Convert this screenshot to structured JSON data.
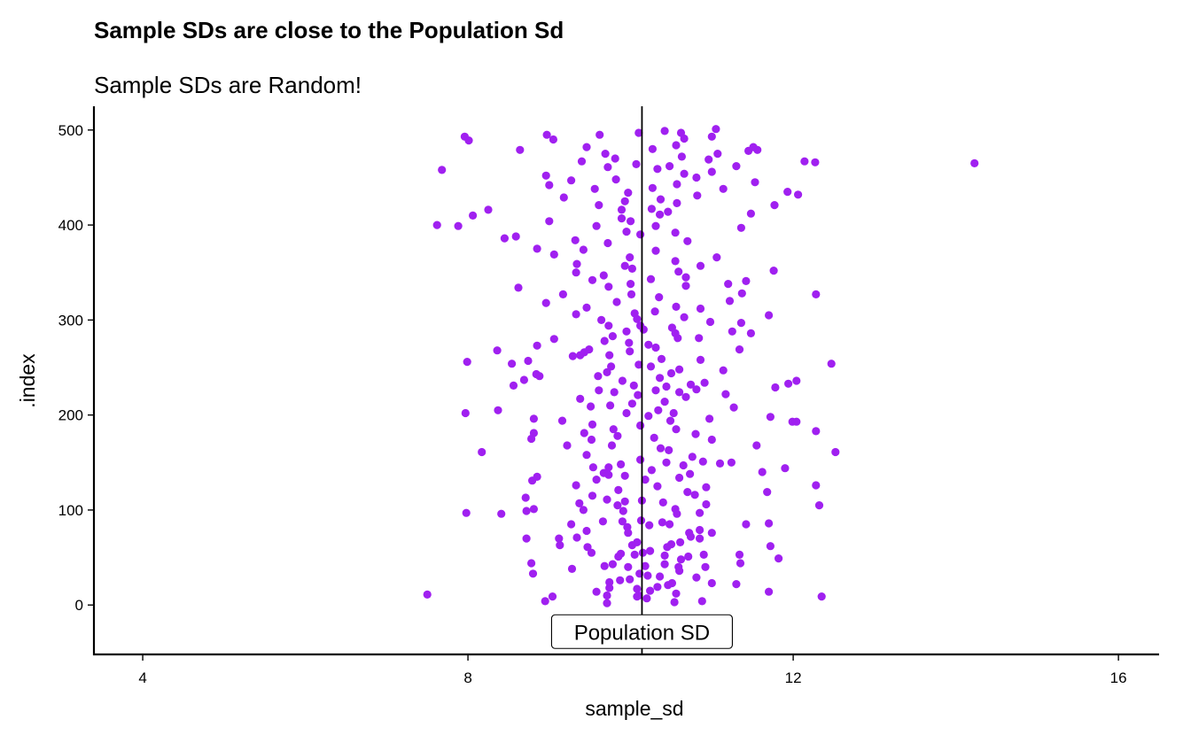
{
  "chart_data": {
    "type": "scatter",
    "title": "Sample SDs are close to the Population Sd",
    "subtitle": "Sample SDs are Random!",
    "xlabel": "sample_sd",
    "ylabel": ".index",
    "xlim": [
      3.4,
      16.5
    ],
    "ylim": [
      -52,
      525
    ],
    "x_ticks": [
      4,
      8,
      12,
      16
    ],
    "y_ticks": [
      0,
      100,
      200,
      300,
      400,
      500
    ],
    "grid": false,
    "legend": "none",
    "point_color": "#A020F0",
    "line_color": "#000000",
    "reference_line": {
      "x": 10.14,
      "label": "Population SD"
    },
    "points": [
      [
        7.5,
        11
      ],
      [
        9.71,
        2
      ],
      [
        9.71,
        10
      ],
      [
        10.08,
        9
      ],
      [
        10.54,
        3
      ],
      [
        10.1,
        10
      ],
      [
        10.88,
        4
      ],
      [
        9.04,
        9
      ],
      [
        10.33,
        19
      ],
      [
        12.35,
        9
      ],
      [
        10.56,
        12
      ],
      [
        8.95,
        4
      ],
      [
        10.2,
        7
      ],
      [
        9.58,
        14
      ],
      [
        10.24,
        15
      ],
      [
        10.08,
        17
      ],
      [
        9.74,
        18
      ],
      [
        10.46,
        21
      ],
      [
        11.0,
        23
      ],
      [
        10.51,
        23
      ],
      [
        9.74,
        24
      ],
      [
        11.7,
        14
      ],
      [
        11.3,
        22
      ],
      [
        9.87,
        26
      ],
      [
        9.99,
        27
      ],
      [
        10.81,
        29
      ],
      [
        10.36,
        30
      ],
      [
        9.28,
        38
      ],
      [
        8.8,
        33
      ],
      [
        10.21,
        31
      ],
      [
        10.11,
        33
      ],
      [
        9.97,
        40
      ],
      [
        10.6,
        36
      ],
      [
        10.18,
        41
      ],
      [
        8.78,
        44
      ],
      [
        9.68,
        41
      ],
      [
        10.42,
        43
      ],
      [
        10.92,
        40
      ],
      [
        9.78,
        43
      ],
      [
        11.35,
        44
      ],
      [
        10.59,
        40
      ],
      [
        10.62,
        48
      ],
      [
        11.82,
        49
      ],
      [
        9.85,
        51
      ],
      [
        10.05,
        53
      ],
      [
        10.42,
        52
      ],
      [
        10.71,
        51
      ],
      [
        10.15,
        55
      ],
      [
        9.88,
        54
      ],
      [
        9.52,
        55
      ],
      [
        10.9,
        53
      ],
      [
        11.34,
        53
      ],
      [
        10.24,
        57
      ],
      [
        9.47,
        61
      ],
      [
        10.45,
        61
      ],
      [
        9.13,
        63
      ],
      [
        11.72,
        62
      ],
      [
        10.5,
        64
      ],
      [
        10.02,
        63
      ],
      [
        10.08,
        66
      ],
      [
        10.61,
        66
      ],
      [
        9.12,
        70
      ],
      [
        10.85,
        70
      ],
      [
        10.74,
        72
      ],
      [
        8.72,
        70
      ],
      [
        9.34,
        71
      ],
      [
        9.97,
        76
      ],
      [
        10.72,
        76
      ],
      [
        9.46,
        78
      ],
      [
        11.0,
        76
      ],
      [
        10.85,
        79
      ],
      [
        9.96,
        82
      ],
      [
        9.27,
        85
      ],
      [
        11.42,
        85
      ],
      [
        10.23,
        84
      ],
      [
        10.48,
        85
      ],
      [
        10.39,
        87
      ],
      [
        9.66,
        88
      ],
      [
        9.9,
        88
      ],
      [
        11.7,
        86
      ],
      [
        10.13,
        89
      ],
      [
        7.98,
        97
      ],
      [
        8.41,
        96
      ],
      [
        10.57,
        96
      ],
      [
        10.85,
        97
      ],
      [
        8.72,
        99
      ],
      [
        9.42,
        100
      ],
      [
        9.91,
        99
      ],
      [
        10.55,
        101
      ],
      [
        9.84,
        105
      ],
      [
        8.81,
        101
      ],
      [
        10.93,
        106
      ],
      [
        9.37,
        107
      ],
      [
        10.4,
        108
      ],
      [
        12.32,
        105
      ],
      [
        9.71,
        111
      ],
      [
        9.93,
        109
      ],
      [
        10.14,
        110
      ],
      [
        8.71,
        113
      ],
      [
        9.53,
        115
      ],
      [
        10.79,
        116
      ],
      [
        11.68,
        119
      ],
      [
        10.7,
        119
      ],
      [
        9.85,
        121
      ],
      [
        12.28,
        126
      ],
      [
        10.33,
        125
      ],
      [
        9.33,
        126
      ],
      [
        10.93,
        124
      ],
      [
        8.79,
        131
      ],
      [
        10.18,
        132
      ],
      [
        9.58,
        132
      ],
      [
        10.6,
        134
      ],
      [
        9.93,
        136
      ],
      [
        9.73,
        137
      ],
      [
        10.73,
        138
      ],
      [
        9.67,
        139
      ],
      [
        8.85,
        135
      ],
      [
        11.9,
        144
      ],
      [
        10.26,
        142
      ],
      [
        9.73,
        145
      ],
      [
        11.62,
        140
      ],
      [
        9.54,
        145
      ],
      [
        10.65,
        147
      ],
      [
        9.88,
        148
      ],
      [
        11.1,
        149
      ],
      [
        11.24,
        150
      ],
      [
        10.44,
        150
      ],
      [
        10.12,
        153
      ],
      [
        10.89,
        151
      ],
      [
        8.17,
        161
      ],
      [
        12.52,
        161
      ],
      [
        10.76,
        156
      ],
      [
        9.46,
        158
      ],
      [
        10.47,
        163
      ],
      [
        10.37,
        165
      ],
      [
        9.22,
        168
      ],
      [
        9.77,
        168
      ],
      [
        11.55,
        168
      ],
      [
        8.78,
        175
      ],
      [
        9.52,
        174
      ],
      [
        11.0,
        174
      ],
      [
        10.29,
        176
      ],
      [
        9.84,
        178
      ],
      [
        8.81,
        181
      ],
      [
        9.43,
        181
      ],
      [
        10.8,
        180
      ],
      [
        9.79,
        185
      ],
      [
        12.28,
        183
      ],
      [
        10.56,
        185
      ],
      [
        10.12,
        189
      ],
      [
        9.53,
        190
      ],
      [
        9.16,
        194
      ],
      [
        11.99,
        193
      ],
      [
        10.49,
        194
      ],
      [
        8.81,
        196
      ],
      [
        10.97,
        196
      ],
      [
        12.04,
        193
      ],
      [
        10.22,
        199
      ],
      [
        9.95,
        202
      ],
      [
        7.97,
        202
      ],
      [
        11.72,
        198
      ],
      [
        10.53,
        202
      ],
      [
        10.34,
        205
      ],
      [
        11.27,
        208
      ],
      [
        8.37,
        205
      ],
      [
        9.51,
        209
      ],
      [
        9.75,
        210
      ],
      [
        10.02,
        212
      ],
      [
        10.42,
        214
      ],
      [
        9.38,
        217
      ],
      [
        10.68,
        219
      ],
      [
        10.09,
        221
      ],
      [
        11.17,
        222
      ],
      [
        9.8,
        224
      ],
      [
        10.6,
        224
      ],
      [
        10.31,
        226
      ],
      [
        9.61,
        226
      ],
      [
        10.81,
        227
      ],
      [
        11.78,
        229
      ],
      [
        10.44,
        230
      ],
      [
        10.04,
        231
      ],
      [
        10.74,
        232
      ],
      [
        12.04,
        236
      ],
      [
        9.9,
        236
      ],
      [
        10.91,
        234
      ],
      [
        8.56,
        231
      ],
      [
        11.94,
        233
      ],
      [
        8.69,
        237
      ],
      [
        9.6,
        241
      ],
      [
        10.36,
        239
      ],
      [
        8.84,
        243
      ],
      [
        10.5,
        244
      ],
      [
        9.71,
        245
      ],
      [
        8.88,
        241
      ],
      [
        10.6,
        248
      ],
      [
        9.76,
        251
      ],
      [
        10.25,
        251
      ],
      [
        11.14,
        247
      ],
      [
        10.1,
        253
      ],
      [
        12.47,
        254
      ],
      [
        8.74,
        257
      ],
      [
        7.99,
        256
      ],
      [
        8.54,
        254
      ],
      [
        9.29,
        262
      ],
      [
        9.38,
        263
      ],
      [
        9.74,
        263
      ],
      [
        10.38,
        259
      ],
      [
        10.86,
        258
      ],
      [
        8.36,
        268
      ],
      [
        9.43,
        266
      ],
      [
        9.99,
        267
      ],
      [
        9.49,
        269
      ],
      [
        10.31,
        271
      ],
      [
        11.34,
        269
      ],
      [
        10.22,
        274
      ],
      [
        9.98,
        276
      ],
      [
        8.85,
        273
      ],
      [
        9.68,
        278
      ],
      [
        9.06,
        280
      ],
      [
        10.58,
        281
      ],
      [
        10.84,
        281
      ],
      [
        9.78,
        283
      ],
      [
        10.55,
        286
      ],
      [
        11.48,
        286
      ],
      [
        9.95,
        288
      ],
      [
        11.25,
        288
      ],
      [
        10.16,
        290
      ],
      [
        10.51,
        292
      ],
      [
        9.73,
        294
      ],
      [
        11.36,
        297
      ],
      [
        10.12,
        294
      ],
      [
        10.98,
        298
      ],
      [
        9.64,
        300
      ],
      [
        10.08,
        301
      ],
      [
        10.66,
        303
      ],
      [
        9.33,
        306
      ],
      [
        11.7,
        305
      ],
      [
        10.05,
        307
      ],
      [
        10.3,
        309
      ],
      [
        10.86,
        312
      ],
      [
        9.46,
        313
      ],
      [
        10.56,
        314
      ],
      [
        9.83,
        319
      ],
      [
        11.22,
        320
      ],
      [
        8.96,
        318
      ],
      [
        10.35,
        324
      ],
      [
        9.17,
        327
      ],
      [
        11.37,
        328
      ],
      [
        10.01,
        327
      ],
      [
        12.28,
        327
      ],
      [
        8.62,
        334
      ],
      [
        9.73,
        335
      ],
      [
        10.68,
        336
      ],
      [
        11.2,
        338
      ],
      [
        10.0,
        338
      ],
      [
        9.53,
        342
      ],
      [
        10.25,
        343
      ],
      [
        11.42,
        341
      ],
      [
        10.68,
        345
      ],
      [
        9.67,
        347
      ],
      [
        9.33,
        350
      ],
      [
        10.59,
        351
      ],
      [
        10.02,
        354
      ],
      [
        11.76,
        352
      ],
      [
        10.86,
        357
      ],
      [
        9.34,
        359
      ],
      [
        9.93,
        357
      ],
      [
        10.55,
        362
      ],
      [
        9.99,
        366
      ],
      [
        11.06,
        366
      ],
      [
        9.06,
        369
      ],
      [
        9.42,
        374
      ],
      [
        10.31,
        373
      ],
      [
        8.85,
        375
      ],
      [
        9.72,
        381
      ],
      [
        10.7,
        383
      ],
      [
        9.32,
        384
      ],
      [
        8.45,
        386
      ],
      [
        8.59,
        388
      ],
      [
        10.12,
        390
      ],
      [
        9.95,
        393
      ],
      [
        10.55,
        392
      ],
      [
        11.36,
        397
      ],
      [
        9.58,
        399
      ],
      [
        10.31,
        399
      ],
      [
        7.62,
        400
      ],
      [
        7.88,
        399
      ],
      [
        9.0,
        404
      ],
      [
        10.0,
        404
      ],
      [
        9.89,
        407
      ],
      [
        8.06,
        410
      ],
      [
        10.36,
        411
      ],
      [
        11.48,
        412
      ],
      [
        10.46,
        414
      ],
      [
        8.25,
        416
      ],
      [
        9.89,
        416
      ],
      [
        10.26,
        417
      ],
      [
        9.61,
        421
      ],
      [
        10.57,
        423
      ],
      [
        11.77,
        421
      ],
      [
        9.93,
        425
      ],
      [
        10.37,
        427
      ],
      [
        9.18,
        429
      ],
      [
        10.82,
        431
      ],
      [
        12.06,
        432
      ],
      [
        9.97,
        434
      ],
      [
        11.14,
        438
      ],
      [
        11.93,
        435
      ],
      [
        10.27,
        439
      ],
      [
        9.56,
        438
      ],
      [
        9.0,
        442
      ],
      [
        10.57,
        443
      ],
      [
        11.53,
        445
      ],
      [
        9.27,
        447
      ],
      [
        9.82,
        448
      ],
      [
        10.81,
        450
      ],
      [
        8.96,
        452
      ],
      [
        10.66,
        454
      ],
      [
        11.0,
        456
      ],
      [
        7.68,
        458
      ],
      [
        10.33,
        459
      ],
      [
        9.72,
        461
      ],
      [
        10.48,
        462
      ],
      [
        11.3,
        462
      ],
      [
        10.07,
        464
      ],
      [
        14.23,
        465
      ],
      [
        12.14,
        467
      ],
      [
        12.27,
        466
      ],
      [
        9.4,
        467
      ],
      [
        10.96,
        469
      ],
      [
        9.81,
        470
      ],
      [
        10.63,
        472
      ],
      [
        9.69,
        475
      ],
      [
        11.07,
        475
      ],
      [
        11.45,
        478
      ],
      [
        8.64,
        479
      ],
      [
        11.56,
        479
      ],
      [
        10.27,
        480
      ],
      [
        9.46,
        482
      ],
      [
        10.56,
        484
      ],
      [
        11.51,
        482
      ],
      [
        8.01,
        489
      ],
      [
        9.05,
        490
      ],
      [
        10.66,
        491
      ],
      [
        11.0,
        493
      ],
      [
        8.97,
        495
      ],
      [
        7.96,
        493
      ],
      [
        9.62,
        495
      ],
      [
        10.1,
        497
      ],
      [
        10.62,
        497
      ],
      [
        11.05,
        501
      ],
      [
        10.42,
        499
      ]
    ]
  }
}
